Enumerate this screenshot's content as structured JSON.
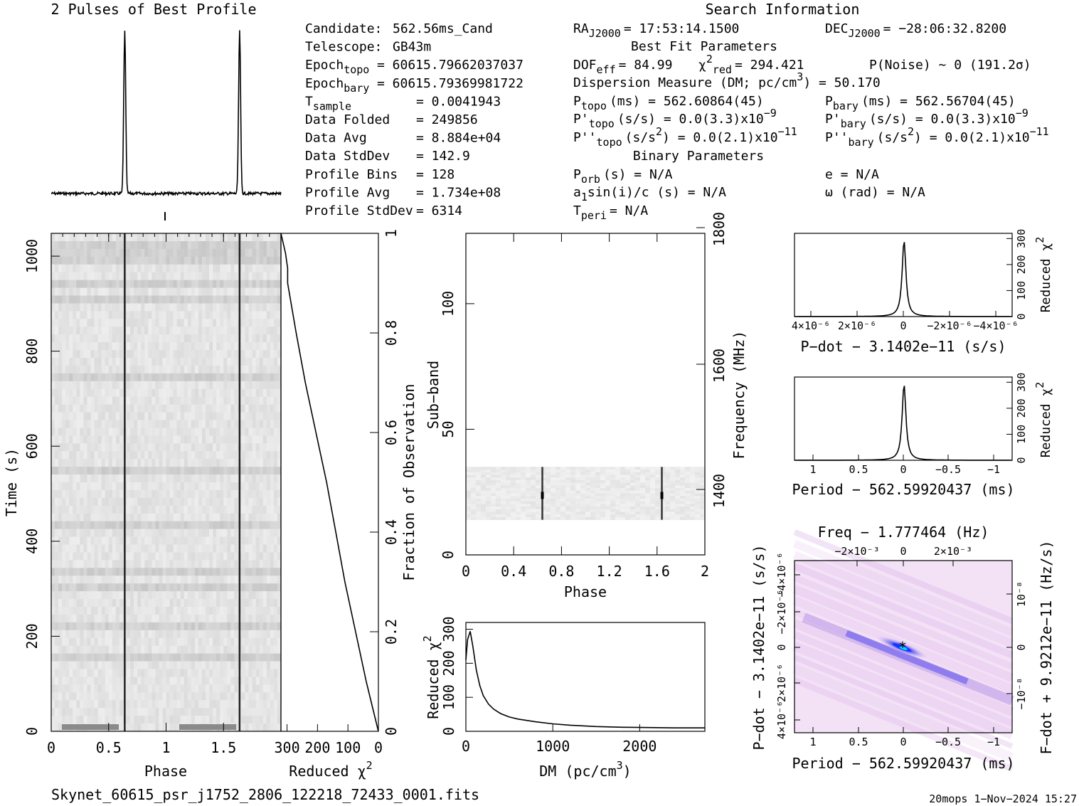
{
  "profile": {
    "title": "2 Pulses of Best Profile"
  },
  "info": {
    "search_title": "Search Information",
    "best_fit_title": "Best Fit Parameters",
    "binary_title": "Binary Parameters",
    "col1": [
      {
        "label": "Candidate:",
        "value": "562.56ms_Cand"
      },
      {
        "label": "Telescope:",
        "value": "GB43m"
      },
      {
        "label": "Epoch",
        "sub": "topo",
        "value": "= 60615.79662037037"
      },
      {
        "label": "Epoch",
        "sub": "bary",
        "value": "= 60615.79369981722"
      },
      {
        "label": "T",
        "sub": "sample",
        "value": "=  0.0041943"
      },
      {
        "label": "Data Folded",
        "value": "=  249856"
      },
      {
        "label": "Data Avg",
        "value": "=  8.884e+04"
      },
      {
        "label": "Data StdDev",
        "value": "=  142.9"
      },
      {
        "label": "Profile Bins",
        "value": "=  128"
      },
      {
        "label": "Profile Avg",
        "value": "=  1.734e+08"
      },
      {
        "label": "Profile StdDev",
        "value": "=  6314"
      }
    ],
    "ra": {
      "label": "RA",
      "sub": "J2000",
      "value": "= 17:53:14.1500"
    },
    "dec": {
      "label": "DEC",
      "sub": "J2000",
      "value": "= −28:06:32.8200"
    },
    "dof": {
      "label": "DOF",
      "sub": "eff",
      "value": "= 84.99"
    },
    "chi2": {
      "label": "χ",
      "sup": "2",
      "sub": "red",
      "value": "= 294.421"
    },
    "pnoise": "P(Noise) ~ 0   (191.2σ)",
    "dm_line": "Dispersion Measure (DM; pc/cm",
    "dm_sup": "3",
    "dm_value": ") = 50.170",
    "ptopo": {
      "label": "P",
      "sub": "topo",
      "value": "(ms) =  562.60864(45)"
    },
    "pbary": {
      "label": "P",
      "sub": "bary",
      "value": "(ms) =  562.56704(45)"
    },
    "pdtopo": {
      "label": "P'",
      "sub": "topo",
      "value": "(s/s) = 0.0(3.3)x10",
      "sup": "−9"
    },
    "pdbary": {
      "label": "P'",
      "sub": "bary",
      "value": "(s/s) = 0.0(3.3)x10",
      "sup": "−9"
    },
    "pddtopo": {
      "label": "P''",
      "sub": "topo",
      "value": "(s/s",
      "sup2": "2",
      "value2": ") = 0.0(2.1)x10",
      "sup": "−11"
    },
    "pddbary": {
      "label": "P''",
      "sub": "bary",
      "value": "(s/s",
      "sup2": "2",
      "value2": ") = 0.0(2.1)x10",
      "sup": "−11"
    },
    "porb": {
      "label": "P",
      "sub": "orb",
      "value": "(s) = N/A"
    },
    "a1": {
      "label": "a",
      "sub": "1",
      "value": "sin(i)/c (s) = N/A"
    },
    "tperi": {
      "label": "T",
      "sub": "peri",
      "value": "= N/A"
    },
    "ecc": "e = N/A",
    "omega": "ω (rad) = N/A"
  },
  "footer": {
    "filename": "Skynet_60615_psr_j1752_2806_122218_72433_0001.fits",
    "stamp": "20mops   1−Nov−2024 15:27"
  },
  "colors": {
    "axis": "#000000",
    "heat_low": "#ffffff",
    "heat_mid": "#d9a3e6",
    "heat_high": "#1a33ff"
  },
  "chart_data": [
    {
      "id": "pulse_profile",
      "type": "line",
      "title": "2 Pulses of Best Profile",
      "x_range": [
        0,
        2
      ],
      "peaks_phase": [
        0.64,
        1.64
      ],
      "peak_width": 0.012
    },
    {
      "id": "time_phase",
      "type": "heatmap",
      "xlabel": "Phase",
      "ylabel": "Time (s)",
      "xlim": [
        0,
        2
      ],
      "ylim": [
        0,
        1048
      ],
      "xticks": [
        "0",
        "0.5",
        "1",
        "1.5"
      ],
      "yticks": [
        "0",
        "200",
        "400",
        "600",
        "800",
        "1000"
      ],
      "pulse_phase": [
        0.64,
        1.64
      ]
    },
    {
      "id": "reduced_chi2_vs_time",
      "type": "line",
      "xlabel": "Reduced χ",
      "xlabel_sup": "2",
      "ylabel": "Fraction of Observation",
      "xticks": [
        "300",
        "200",
        "100",
        "0"
      ],
      "yticks": [
        "0",
        "0.2",
        "0.4",
        "0.6",
        "0.8",
        "1"
      ],
      "xlim": [
        320,
        0
      ],
      "fraction": [
        0.0,
        0.05,
        0.1,
        0.2,
        0.3,
        0.4,
        0.5,
        0.6,
        0.7,
        0.8,
        0.9,
        0.93,
        0.96,
        1.0
      ],
      "chi2": [
        0,
        20,
        40,
        75,
        110,
        140,
        170,
        205,
        240,
        270,
        298,
        298,
        305,
        320
      ]
    },
    {
      "id": "subband_phase",
      "type": "heatmap",
      "xlabel": "Phase",
      "ylabel": "Sub−band",
      "y2label": "Frequency (MHz)",
      "xlim": [
        0,
        2
      ],
      "ylim": [
        0,
        128
      ],
      "xticks": [
        "0",
        "0.4",
        "0.8",
        "1.2",
        "1.6",
        "2"
      ],
      "yticks": [
        "0",
        "50",
        "100"
      ],
      "y2ticks": [
        "1400",
        "1600",
        "1800"
      ],
      "band_subbands": [
        14,
        35
      ],
      "pulse_phase": [
        0.64,
        1.64
      ]
    },
    {
      "id": "dm_curve",
      "type": "line",
      "xlabel": "DM (pc/cm",
      "xlabel_sup": "3",
      "xlabel_end": ")",
      "ylabel": "Reduced χ",
      "ylabel_sup": "2",
      "xlim": [
        0,
        2750
      ],
      "ylim": [
        0,
        320
      ],
      "xticks": [
        "0",
        "1000",
        "2000"
      ],
      "yticks": [
        "0",
        "100",
        "200",
        "300"
      ],
      "x": [
        0,
        20,
        50,
        80,
        120,
        160,
        200,
        260,
        320,
        400,
        500,
        600,
        800,
        1000,
        1200,
        1500,
        1800,
        2100,
        2400,
        2750
      ],
      "y": [
        210,
        270,
        294,
        250,
        180,
        135,
        105,
        80,
        65,
        52,
        42,
        36,
        28,
        22,
        18,
        14,
        12,
        11,
        10,
        10
      ]
    },
    {
      "id": "pdot_curve",
      "type": "line",
      "xlabel": "P−dot − 3.1402e−11 (s/s)",
      "ylabel": "Reduced χ",
      "ylabel_sup": "2",
      "ylim": [
        0,
        320
      ],
      "xticks": [
        "4×10⁻⁶",
        "2×10⁻⁶",
        "0",
        "−2×10⁻⁶",
        "−4×10⁻⁶"
      ],
      "yticks": [
        "0",
        "100",
        "200",
        "300"
      ],
      "peak": 294
    },
    {
      "id": "period_curve",
      "type": "line",
      "xlabel": "Period − 562.59920437 (ms)",
      "ylabel": "Reduced χ",
      "ylabel_sup": "2",
      "ylim": [
        0,
        320
      ],
      "xticks": [
        "1",
        "0.5",
        "0",
        "−0.5",
        "−1"
      ],
      "yticks": [
        "0",
        "100",
        "200",
        "300"
      ],
      "peak": 294
    },
    {
      "id": "p_pdot_plane",
      "type": "heatmap",
      "title": "Freq − 1.777464 (Hz)",
      "xlabel": "Period − 562.59920437 (ms)",
      "ylabel": "P−dot − 3.1402e−11 (s/s)",
      "y2label": "F−dot + 9.9212e−11 (Hz/s)",
      "xticks": [
        "1",
        "0.5",
        "0",
        "−0.5",
        "−1"
      ],
      "top_ticks": [
        "−2×10⁻³",
        "0",
        "2×10⁻³"
      ],
      "yticks": [
        "4×10⁻⁶",
        "2×10⁻⁶",
        "0",
        "−2×10⁻⁶",
        "−4×10⁻⁶"
      ],
      "y2ticks": [
        "−10⁻⁸",
        "0",
        "10⁻⁸"
      ]
    }
  ]
}
